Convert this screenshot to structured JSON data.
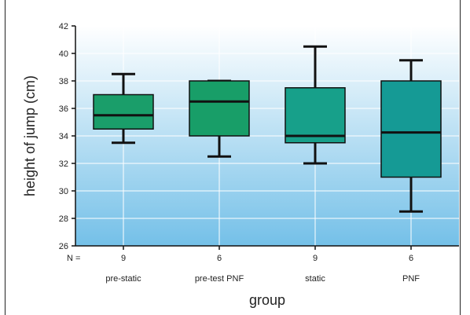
{
  "chart_data": {
    "type": "box",
    "xlabel": "group",
    "ylabel": "height of jump (cm)",
    "ylim": [
      26,
      42
    ],
    "y_ticks": [
      26,
      28,
      30,
      32,
      34,
      36,
      38,
      40,
      42
    ],
    "grid": true,
    "n_label": "N =",
    "categories": [
      "pre-static",
      "pre-test PNF",
      "static",
      "PNF"
    ],
    "n_values": [
      "9",
      "6",
      "9",
      "6"
    ],
    "boxes": [
      {
        "min": 33.5,
        "q1": 34.5,
        "median": 35.5,
        "q3": 37.0,
        "max": 38.5,
        "color": "#1a9e6a"
      },
      {
        "min": 32.5,
        "q1": 34.0,
        "median": 36.5,
        "q3": 38.0,
        "max": 38.0,
        "color": "#189e68"
      },
      {
        "min": 32.0,
        "q1": 33.5,
        "median": 34.0,
        "q3": 37.5,
        "max": 40.5,
        "color": "#17a08a"
      },
      {
        "min": 28.5,
        "q1": 31.0,
        "median": 34.25,
        "q3": 38.0,
        "max": 39.5,
        "color": "#159a95"
      }
    ],
    "colors": {
      "plot_top": "#ffffff",
      "plot_bottom": "#74c0e8",
      "grid": "#ffffff",
      "whisker": "#111111"
    }
  }
}
